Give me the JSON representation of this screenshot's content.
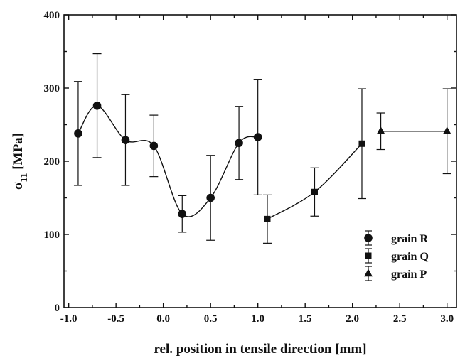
{
  "chart_data": {
    "type": "scatter",
    "title": "",
    "xlabel": "rel. position in tensile direction [mm]",
    "ylabel": "σ",
    "ylabel_subscript": "11",
    "ylabel_suffix": " [MPa]",
    "xlim": [
      -1.05,
      3.1
    ],
    "ylim": [
      0,
      400
    ],
    "xticks": [
      -1.0,
      -0.5,
      0.0,
      0.5,
      1.0,
      1.5,
      2.0,
      2.5,
      3.0
    ],
    "xtick_labels": [
      "-1.0",
      "-0.5",
      "0.0",
      "0.5",
      "1.0",
      "1.5",
      "2.0",
      "2.5",
      "3.0"
    ],
    "yticks": [
      0,
      100,
      200,
      300,
      400
    ],
    "ytick_labels": [
      "0",
      "100",
      "200",
      "300",
      "400"
    ],
    "legend_position": "bottom-right",
    "series": [
      {
        "name": "grain R",
        "marker": "circle",
        "connect": "smooth",
        "points": [
          {
            "x": -0.9,
            "y": 238,
            "err": 71
          },
          {
            "x": -0.7,
            "y": 276,
            "err": 71
          },
          {
            "x": -0.4,
            "y": 229,
            "err": 62
          },
          {
            "x": -0.1,
            "y": 221,
            "err": 42
          },
          {
            "x": 0.2,
            "y": 128,
            "err": 25
          },
          {
            "x": 0.5,
            "y": 150,
            "err": 58
          },
          {
            "x": 0.8,
            "y": 225,
            "err": 50
          },
          {
            "x": 1.0,
            "y": 233,
            "err": 79
          }
        ]
      },
      {
        "name": "grain Q",
        "marker": "square",
        "connect": "smooth",
        "points": [
          {
            "x": 1.1,
            "y": 121,
            "err": 33
          },
          {
            "x": 1.6,
            "y": 158,
            "err": 33
          },
          {
            "x": 2.1,
            "y": 224,
            "err": 75
          }
        ]
      },
      {
        "name": "grain P",
        "marker": "triangle",
        "connect": "straight",
        "points": [
          {
            "x": 2.3,
            "y": 241,
            "err": 25
          },
          {
            "x": 3.0,
            "y": 241,
            "err": 58
          }
        ]
      }
    ]
  }
}
